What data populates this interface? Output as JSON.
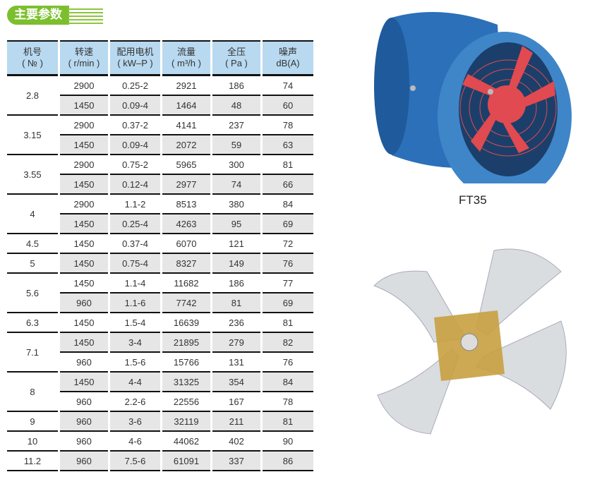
{
  "section_title": "主要参数",
  "table": {
    "headers": [
      [
        "机号",
        "( № )"
      ],
      [
        "转速",
        "( r/min )"
      ],
      [
        "配用电机",
        "( kW–P )"
      ],
      [
        "流量",
        "( m³/h )"
      ],
      [
        "全压",
        "( Pa )"
      ],
      [
        "噪声",
        "dB(A)"
      ]
    ],
    "groups": [
      {
        "model": "2.8",
        "rows": [
          [
            "2900",
            "0.25-2",
            "2921",
            "186",
            "74"
          ],
          [
            "1450",
            "0.09-4",
            "1464",
            "48",
            "60"
          ]
        ]
      },
      {
        "model": "3.15",
        "rows": [
          [
            "2900",
            "0.37-2",
            "4141",
            "237",
            "78"
          ],
          [
            "1450",
            "0.09-4",
            "2072",
            "59",
            "63"
          ]
        ]
      },
      {
        "model": "3.55",
        "rows": [
          [
            "2900",
            "0.75-2",
            "5965",
            "300",
            "81"
          ],
          [
            "1450",
            "0.12-4",
            "2977",
            "74",
            "66"
          ]
        ]
      },
      {
        "model": "4",
        "rows": [
          [
            "2900",
            "1.1-2",
            "8513",
            "380",
            "84"
          ],
          [
            "1450",
            "0.25-4",
            "4263",
            "95",
            "69"
          ]
        ]
      },
      {
        "model": "4.5",
        "rows": [
          [
            "1450",
            "0.37-4",
            "6070",
            "121",
            "72"
          ]
        ]
      },
      {
        "model": "5",
        "rows": [
          [
            "1450",
            "0.75-4",
            "8327",
            "149",
            "76"
          ]
        ]
      },
      {
        "model": "5.6",
        "rows": [
          [
            "1450",
            "1.1-4",
            "11682",
            "186",
            "77"
          ],
          [
            "960",
            "1.1-6",
            "7742",
            "81",
            "69"
          ]
        ]
      },
      {
        "model": "6.3",
        "rows": [
          [
            "1450",
            "1.5-4",
            "16639",
            "236",
            "81"
          ]
        ]
      },
      {
        "model": "7.1",
        "rows": [
          [
            "1450",
            "3-4",
            "21895",
            "279",
            "82"
          ],
          [
            "960",
            "1.5-6",
            "15766",
            "131",
            "76"
          ]
        ]
      },
      {
        "model": "8",
        "rows": [
          [
            "1450",
            "4-4",
            "31325",
            "354",
            "84"
          ],
          [
            "960",
            "2.2-6",
            "22556",
            "167",
            "78"
          ]
        ]
      },
      {
        "model": "9",
        "rows": [
          [
            "960",
            "3-6",
            "32119",
            "211",
            "81"
          ]
        ]
      },
      {
        "model": "10",
        "rows": [
          [
            "960",
            "4-6",
            "44062",
            "402",
            "90"
          ]
        ]
      },
      {
        "model": "11.2",
        "rows": [
          [
            "960",
            "7.5-6",
            "61091",
            "337",
            "86"
          ]
        ]
      }
    ]
  },
  "product_label": "FT35",
  "colors": {
    "accent": "#7cbf2e",
    "header_bg": "#b8d9f0",
    "row_alt": "#e6e6e6",
    "fan_blue": "#2a6fb8",
    "fan_red": "#e04a50"
  }
}
